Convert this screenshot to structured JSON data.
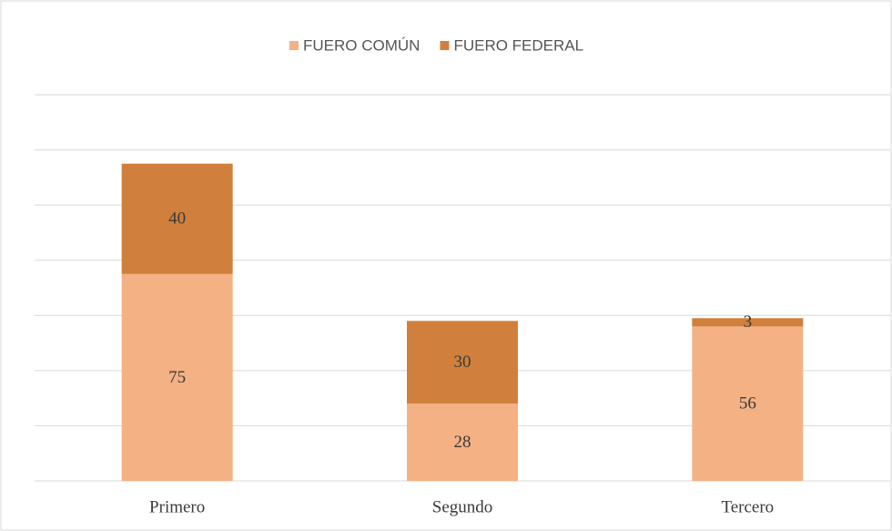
{
  "chart_data": {
    "type": "stacked_bar",
    "categories": [
      "Primero",
      "Segundo",
      "Tercero"
    ],
    "series": [
      {
        "name": "FUERO COMÚN",
        "color": "#f4b183",
        "values": [
          75,
          28,
          56
        ]
      },
      {
        "name": "FUERO FEDERAL",
        "color": "#d0803c",
        "values": [
          40,
          30,
          3
        ]
      }
    ],
    "ylim": [
      0,
      140
    ],
    "yticks": [
      0,
      20,
      40,
      60,
      80,
      100,
      120,
      140
    ],
    "grid": true,
    "legend": "top"
  }
}
